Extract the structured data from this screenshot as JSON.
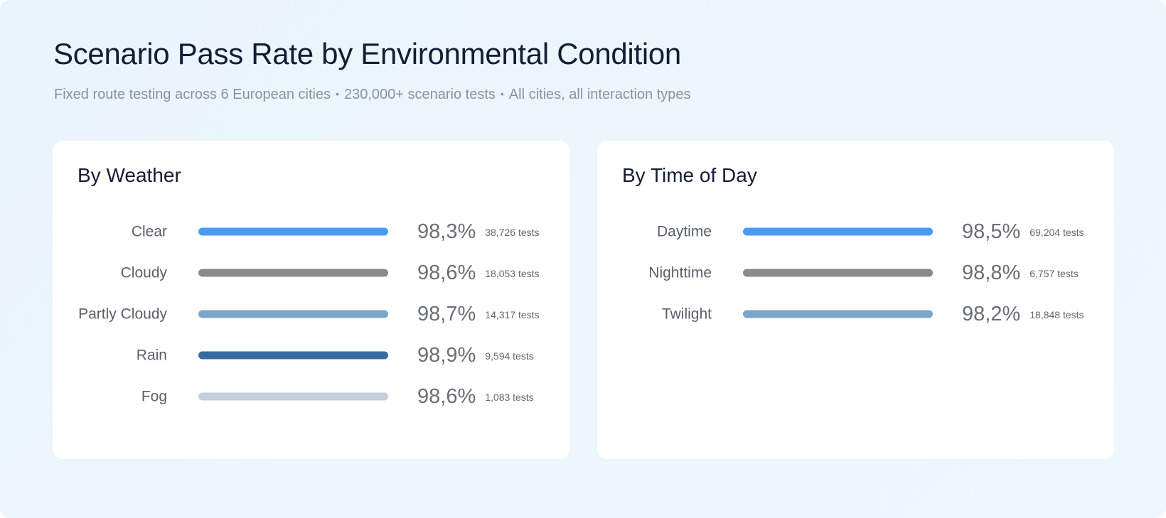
{
  "header": {
    "title": "Scenario Pass Rate by Environmental Condition",
    "subtitle_parts": [
      "Fixed route testing across 6 European cities",
      "230,000+ scenario tests",
      "All cities, all interaction types"
    ],
    "separator": "•"
  },
  "chart_data": [
    {
      "type": "bar",
      "title": "By Weather",
      "unit_suffix": "tests",
      "categories": [
        "Clear",
        "Cloudy",
        "Partly Cloudy",
        "Rain",
        "Fog"
      ],
      "values": [
        "98,3%",
        "98,6%",
        "98,7%",
        "98,9%",
        "98,6%"
      ],
      "tests": [
        "38,726",
        "18,053",
        "14,317",
        "9,594",
        "1,083"
      ],
      "colors": [
        "#4a9af0",
        "#8a8a8a",
        "#7aa6c9",
        "#386ba1",
        "#c4cfda"
      ]
    },
    {
      "type": "bar",
      "title": "By Time of Day",
      "unit_suffix": "tests",
      "categories": [
        "Daytime",
        "Nighttime",
        "Twilight"
      ],
      "values": [
        "98,5%",
        "98,8%",
        "98,2%"
      ],
      "tests": [
        "69,204",
        "6,757",
        "18,848"
      ],
      "colors": [
        "#4a9af0",
        "#8a8a8a",
        "#7aa6c9"
      ]
    }
  ]
}
